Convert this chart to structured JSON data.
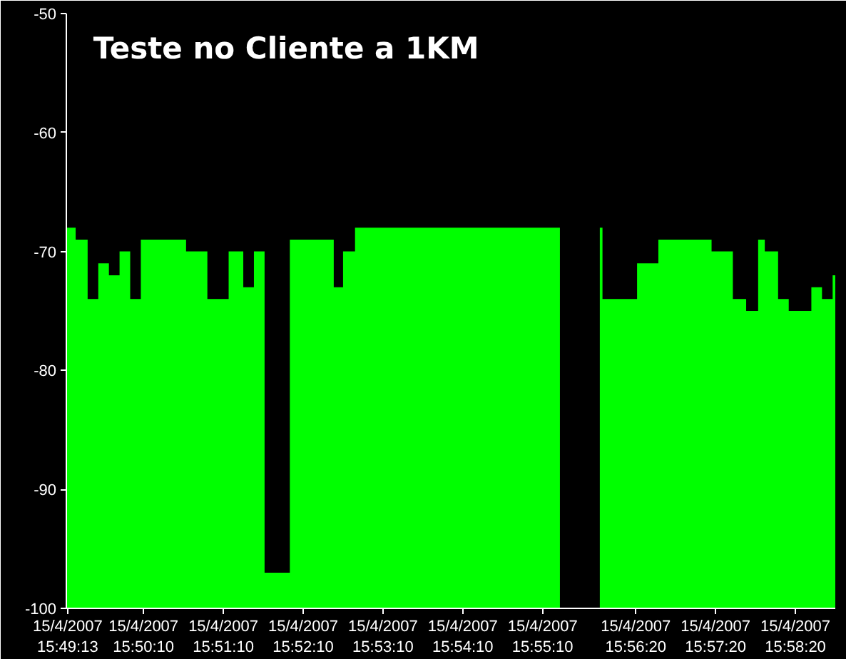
{
  "chart_data": {
    "type": "area",
    "title": "Teste no Cliente a 1KM",
    "x": [
      "2007-04-15T15:49:12",
      "2007-04-15T15:49:19",
      "2007-04-15T15:49:28",
      "2007-04-15T15:49:36",
      "2007-04-15T15:49:44",
      "2007-04-15T15:49:52",
      "2007-04-15T15:50:00",
      "2007-04-15T15:50:08",
      "2007-04-15T15:50:42",
      "2007-04-15T15:50:58",
      "2007-04-15T15:51:14",
      "2007-04-15T15:51:25",
      "2007-04-15T15:51:33",
      "2007-04-15T15:51:41",
      "2007-04-15T15:52:00",
      "2007-04-15T15:52:33",
      "2007-04-15T15:52:40",
      "2007-04-15T15:52:49",
      "2007-04-15T15:55:23",
      "2007-04-15T15:55:53",
      "2007-04-15T15:55:55",
      "2007-04-15T15:56:21",
      "2007-04-15T15:56:37",
      "2007-04-15T15:57:17",
      "2007-04-15T15:57:33",
      "2007-04-15T15:57:43",
      "2007-04-15T15:57:52",
      "2007-04-15T15:57:57",
      "2007-04-15T15:58:07",
      "2007-04-15T15:58:15",
      "2007-04-15T15:58:32",
      "2007-04-15T15:58:40",
      "2007-04-15T15:58:48",
      "2007-04-15T15:58:50"
    ],
    "series": [
      {
        "color": "#00ff00",
        "values": [
          -68,
          -69,
          -74,
          -71,
          -72,
          -70,
          -74,
          -69,
          -70,
          -74,
          -70,
          -73,
          -70,
          -97,
          -69,
          -73,
          -70,
          -68,
          null,
          -68,
          -74,
          -71,
          -69,
          -70,
          -74,
          -75,
          -69,
          -70,
          -74,
          -75,
          -73,
          -74,
          -72,
          -72
        ]
      }
    ],
    "xlim": [
      "2007-04-15T15:49:12",
      "2007-04-15T15:58:50"
    ],
    "xticks": [
      {
        "value": "2007-04-15T15:49:13",
        "label": "15/4/2007\n15:49:13"
      },
      {
        "value": "2007-04-15T15:50:10",
        "label": "15/4/2007\n15:50:10"
      },
      {
        "value": "2007-04-15T15:51:10",
        "label": "15/4/2007\n15:51:10"
      },
      {
        "value": "2007-04-15T15:52:10",
        "label": "15/4/2007\n15:52:10"
      },
      {
        "value": "2007-04-15T15:53:10",
        "label": "15/4/2007\n15:53:10"
      },
      {
        "value": "2007-04-15T15:54:10",
        "label": "15/4/2007\n15:54:10"
      },
      {
        "value": "2007-04-15T15:55:10",
        "label": "15/4/2007\n15:55:10"
      },
      {
        "value": "2007-04-15T15:56:20",
        "label": "15/4/2007\n15:56:20"
      },
      {
        "value": "2007-04-15T15:57:20",
        "label": "15/4/2007\n15:57:20"
      },
      {
        "value": "2007-04-15T15:58:20",
        "label": "15/4/2007\n15:58:20"
      }
    ],
    "ylim": [
      -100,
      -50
    ],
    "yticks": [
      -100,
      -90,
      -80,
      -70,
      -60,
      -50
    ]
  }
}
